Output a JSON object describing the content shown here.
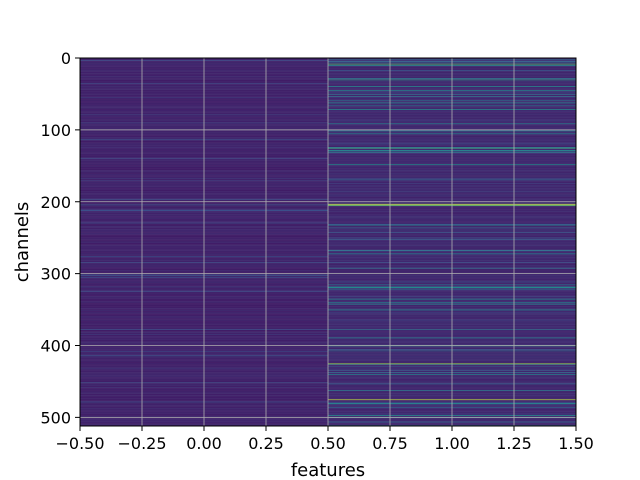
{
  "chart_data": {
    "type": "heatmap",
    "title": "",
    "xlabel": "features",
    "ylabel": "channels",
    "xlim": [
      -0.5,
      1.5
    ],
    "ylim": [
      512,
      0
    ],
    "y_inverted": true,
    "grid": true,
    "colormap": "viridis",
    "n_rows": 512,
    "columns": [
      0,
      1
    ],
    "x_ticks": [
      -0.5,
      -0.25,
      0.0,
      0.25,
      0.5,
      0.75,
      1.0,
      1.25,
      1.5
    ],
    "x_tick_labels": [
      "−0.50",
      "−0.25",
      "0.00",
      "0.25",
      "0.50",
      "0.75",
      "1.00",
      "1.25",
      "1.50"
    ],
    "y_ticks": [
      0,
      100,
      200,
      300,
      400,
      500
    ],
    "y_tick_labels": [
      "0",
      "100",
      "200",
      "300",
      "400",
      "500"
    ],
    "column_base_value": [
      0.08,
      0.1
    ],
    "highlight_rows": [
      {
        "row": 8,
        "column": 1,
        "value": 0.7
      },
      {
        "row": 30,
        "column": 1,
        "value": 0.55
      },
      {
        "row": 125,
        "column": 1,
        "value": 0.6
      },
      {
        "row": 148,
        "column": 1,
        "value": 0.5
      },
      {
        "row": 203,
        "column": 1,
        "value": 0.95
      },
      {
        "row": 205,
        "column": 1,
        "value": 0.8
      },
      {
        "row": 232,
        "column": 1,
        "value": 0.45
      },
      {
        "row": 340,
        "column": 1,
        "value": 0.45
      },
      {
        "row": 400,
        "column": 1,
        "value": 0.55
      },
      {
        "row": 425,
        "column": 1,
        "value": 0.85
      },
      {
        "row": 440,
        "column": 1,
        "value": 0.45
      },
      {
        "row": 475,
        "column": 1,
        "value": 0.9
      },
      {
        "row": 497,
        "column": 1,
        "value": 0.5
      }
    ]
  }
}
